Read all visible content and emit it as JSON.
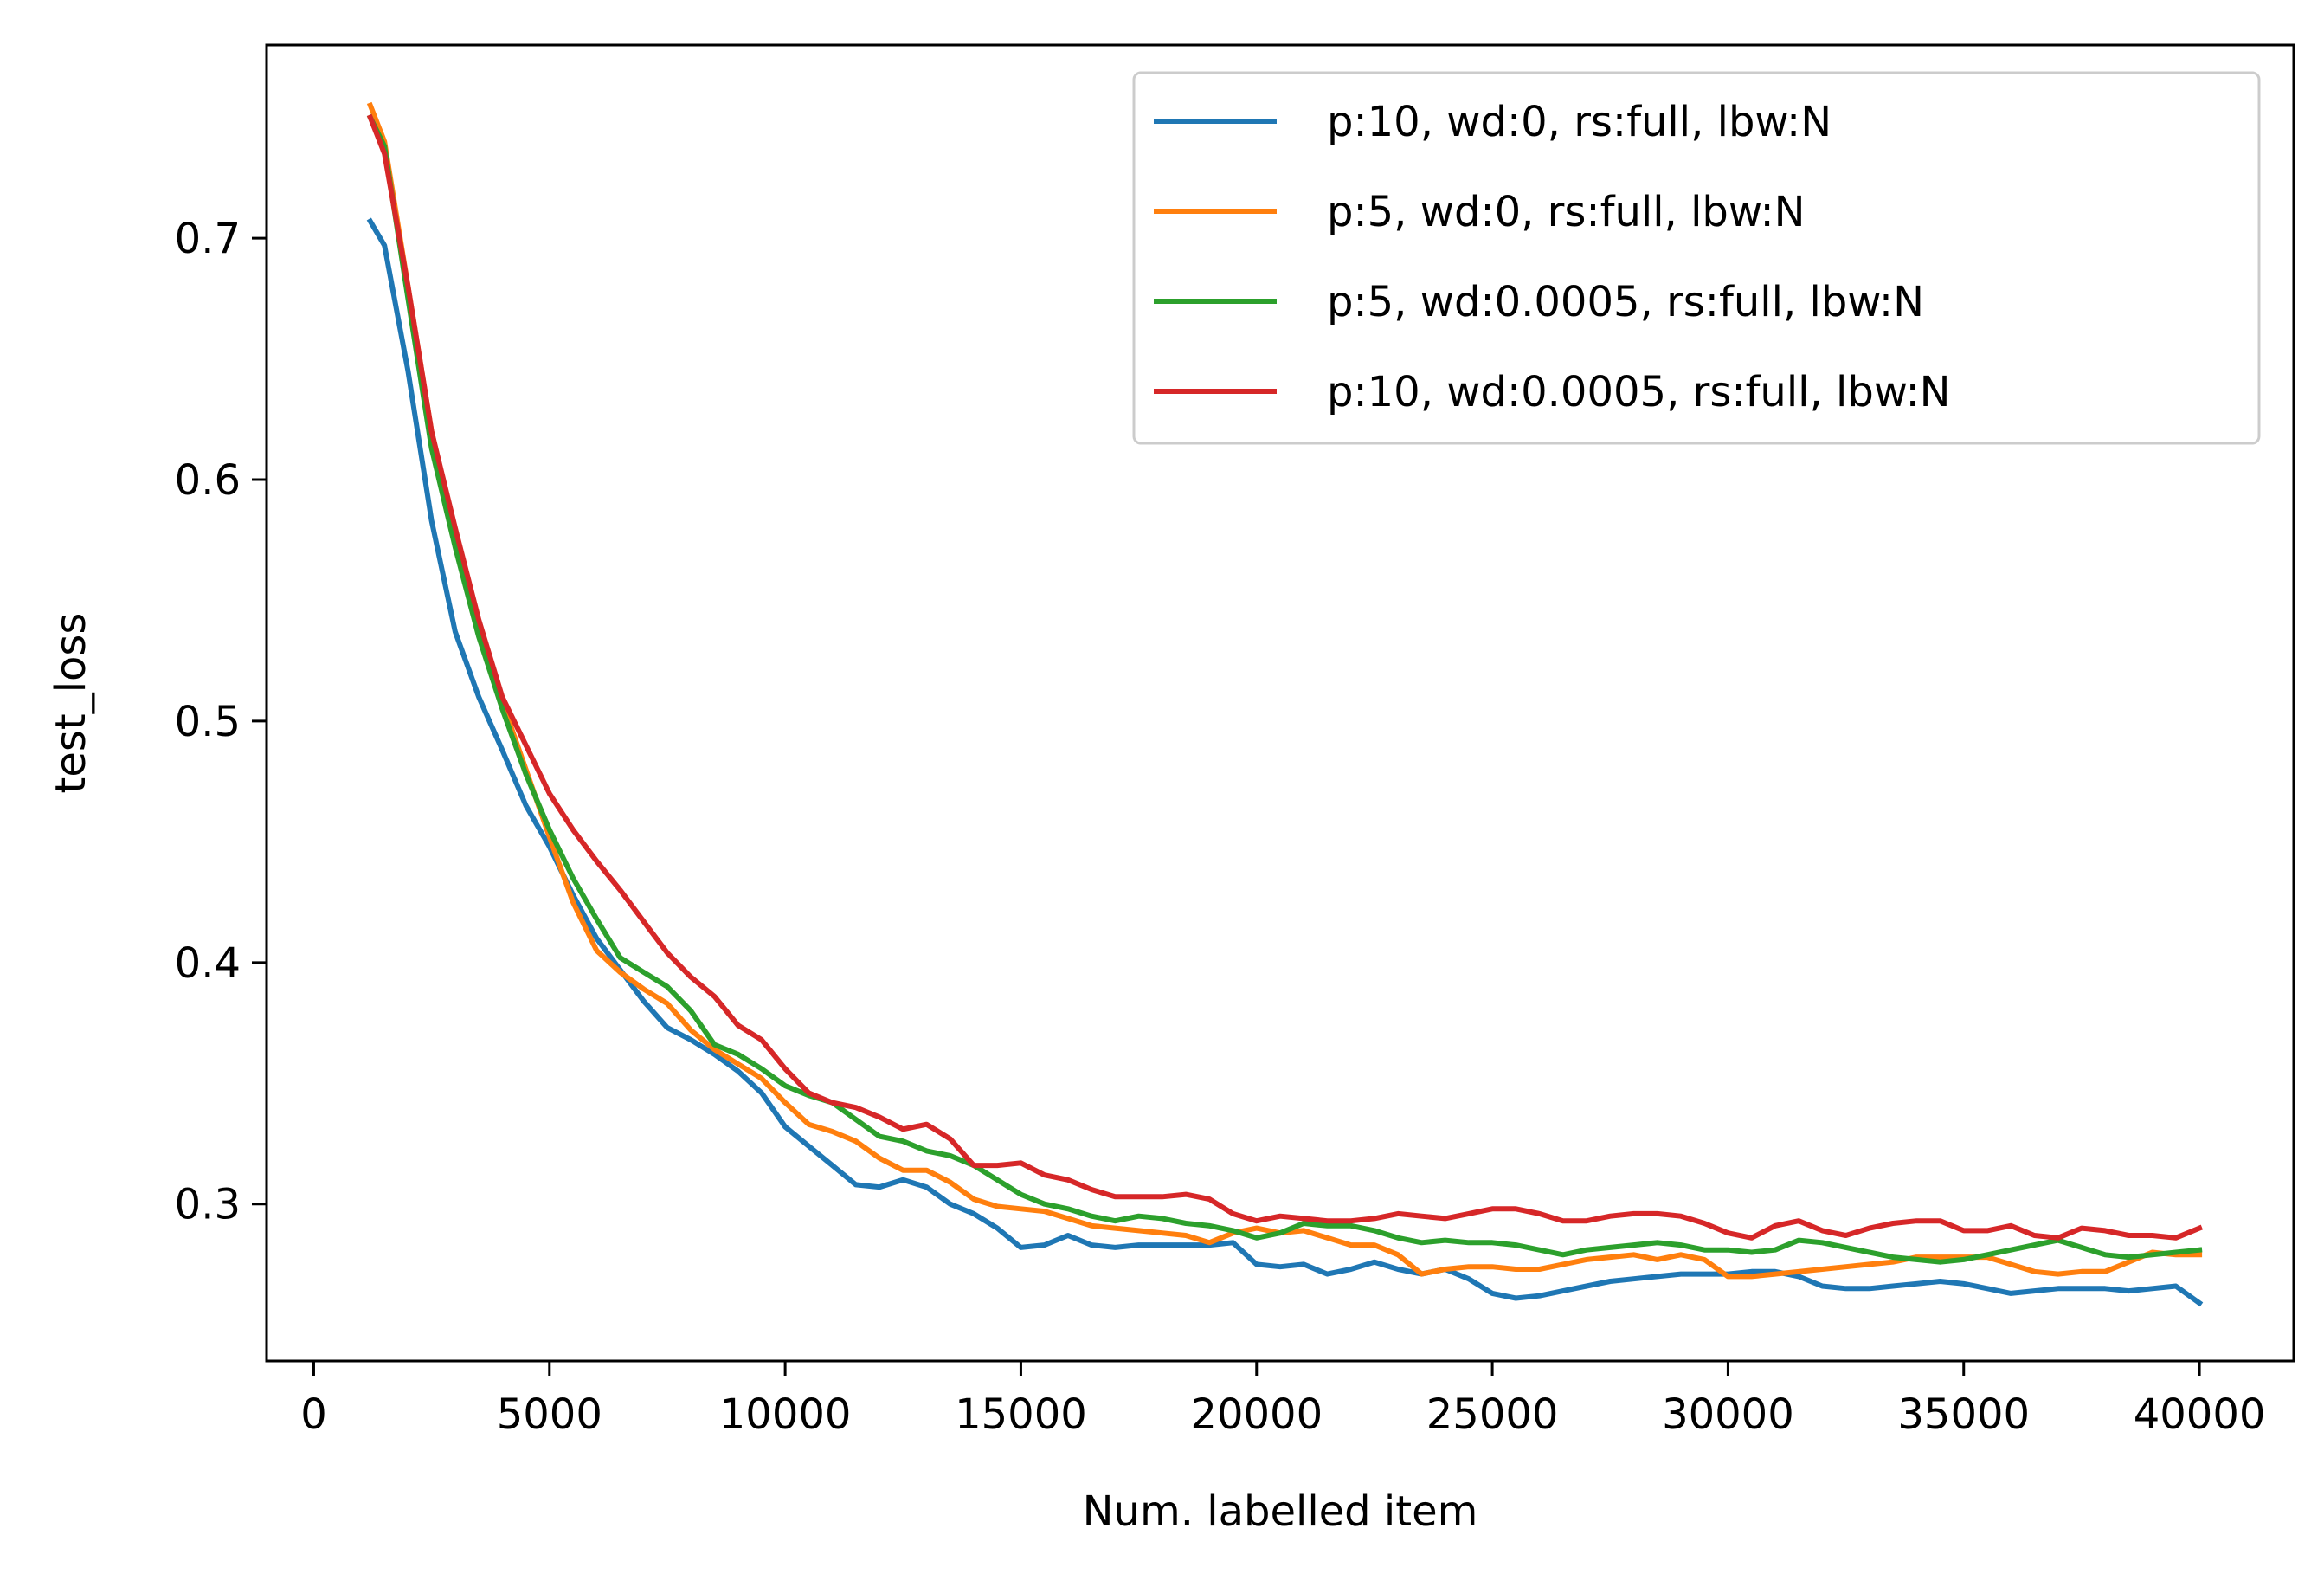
{
  "chart_data": {
    "type": "line",
    "title": "",
    "xlabel": "Num. labelled item",
    "ylabel": "test_loss",
    "xlim": [
      -1000,
      42000
    ],
    "ylim": [
      0.235,
      0.78
    ],
    "xticks": [
      0,
      5000,
      10000,
      15000,
      20000,
      25000,
      30000,
      35000,
      40000
    ],
    "xtick_labels": [
      "0",
      "5000",
      "10000",
      "15000",
      "20000",
      "25000",
      "30000",
      "35000",
      "40000"
    ],
    "yticks": [
      0.3,
      0.4,
      0.5,
      0.6,
      0.7
    ],
    "ytick_labels": [
      "0.3",
      "0.4",
      "0.5",
      "0.6",
      "0.7"
    ],
    "grid": false,
    "legend_position": "top-right",
    "series": [
      {
        "name": "p:10, wd:0, rs:full, lbw:N",
        "color": "#1f77b4",
        "x": [
          1200,
          1500,
          2000,
          2500,
          3000,
          3500,
          4000,
          4500,
          5000,
          5500,
          6000,
          6500,
          7000,
          7500,
          8000,
          8500,
          9000,
          9500,
          10000,
          10500,
          11000,
          11500,
          12000,
          12500,
          13000,
          13500,
          14000,
          14500,
          15000,
          15500,
          16000,
          16500,
          17000,
          17500,
          18000,
          18500,
          19000,
          19500,
          20000,
          20500,
          21000,
          21500,
          22000,
          22500,
          23000,
          23500,
          24000,
          24500,
          25000,
          25500,
          26000,
          26500,
          27000,
          27500,
          28000,
          28500,
          29000,
          29500,
          30000,
          30500,
          31000,
          31500,
          32000,
          32500,
          33000,
          33500,
          34000,
          34500,
          35000,
          35500,
          36000,
          36500,
          37000,
          37500,
          38000,
          38500,
          39000,
          39500,
          40000
        ],
        "values": [
          0.707,
          0.697,
          0.645,
          0.583,
          0.537,
          0.51,
          0.488,
          0.465,
          0.448,
          0.428,
          0.41,
          0.397,
          0.384,
          0.373,
          0.368,
          0.362,
          0.355,
          0.346,
          0.332,
          0.324,
          0.316,
          0.308,
          0.307,
          0.31,
          0.307,
          0.3,
          0.296,
          0.29,
          0.282,
          0.283,
          0.287,
          0.283,
          0.282,
          0.283,
          0.283,
          0.283,
          0.283,
          0.284,
          0.275,
          0.274,
          0.275,
          0.271,
          0.273,
          0.276,
          0.273,
          0.271,
          0.273,
          0.269,
          0.263,
          0.261,
          0.262,
          0.264,
          0.266,
          0.268,
          0.269,
          0.27,
          0.271,
          0.271,
          0.271,
          0.272,
          0.272,
          0.27,
          0.266,
          0.265,
          0.265,
          0.266,
          0.267,
          0.268,
          0.267,
          0.265,
          0.263,
          0.264,
          0.265,
          0.265,
          0.265,
          0.264,
          0.265,
          0.266,
          0.259
        ]
      },
      {
        "name": "p:5, wd:0, rs:full, lbw:N",
        "color": "#ff7f0e",
        "x": [
          1200,
          1500,
          2000,
          2500,
          3000,
          3500,
          4000,
          4500,
          5000,
          5500,
          6000,
          6500,
          7000,
          7500,
          8000,
          8500,
          9000,
          9500,
          10000,
          10500,
          11000,
          11500,
          12000,
          12500,
          13000,
          13500,
          14000,
          14500,
          15000,
          15500,
          16000,
          16500,
          17000,
          17500,
          18000,
          18500,
          19000,
          19500,
          20000,
          20500,
          21000,
          21500,
          22000,
          22500,
          23000,
          23500,
          24000,
          24500,
          25000,
          25500,
          26000,
          26500,
          27000,
          27500,
          28000,
          28500,
          29000,
          29500,
          30000,
          30500,
          31000,
          31500,
          32000,
          32500,
          33000,
          33500,
          34000,
          34500,
          35000,
          35500,
          36000,
          36500,
          37000,
          37500,
          38000,
          38500,
          39000,
          39500,
          40000
        ],
        "values": [
          0.755,
          0.74,
          0.68,
          0.62,
          0.578,
          0.54,
          0.508,
          0.48,
          0.452,
          0.425,
          0.405,
          0.396,
          0.389,
          0.383,
          0.372,
          0.364,
          0.358,
          0.352,
          0.342,
          0.333,
          0.33,
          0.326,
          0.319,
          0.314,
          0.314,
          0.309,
          0.302,
          0.299,
          0.298,
          0.297,
          0.294,
          0.291,
          0.29,
          0.289,
          0.288,
          0.287,
          0.284,
          0.288,
          0.29,
          0.288,
          0.289,
          0.286,
          0.283,
          0.283,
          0.279,
          0.271,
          0.273,
          0.274,
          0.274,
          0.273,
          0.273,
          0.275,
          0.277,
          0.278,
          0.279,
          0.277,
          0.279,
          0.277,
          0.27,
          0.27,
          0.271,
          0.272,
          0.273,
          0.274,
          0.275,
          0.276,
          0.278,
          0.278,
          0.278,
          0.278,
          0.275,
          0.272,
          0.271,
          0.272,
          0.272,
          0.276,
          0.28,
          0.279,
          0.279
        ]
      },
      {
        "name": "p:5, wd:0.0005, rs:full, lbw:N",
        "color": "#2ca02c",
        "x": [
          1200,
          1500,
          2000,
          2500,
          3000,
          3500,
          4000,
          4500,
          5000,
          5500,
          6000,
          6500,
          7000,
          7500,
          8000,
          8500,
          9000,
          9500,
          10000,
          10500,
          11000,
          11500,
          12000,
          12500,
          13000,
          13500,
          14000,
          14500,
          15000,
          15500,
          16000,
          16500,
          17000,
          17500,
          18000,
          18500,
          19000,
          19500,
          20000,
          20500,
          21000,
          21500,
          22000,
          22500,
          23000,
          23500,
          24000,
          24500,
          25000,
          25500,
          26000,
          26500,
          27000,
          27500,
          28000,
          28500,
          29000,
          29500,
          30000,
          30500,
          31000,
          31500,
          32000,
          32500,
          33000,
          33500,
          34000,
          34500,
          35000,
          35500,
          36000,
          36500,
          37000,
          37500,
          38000,
          38500,
          39000,
          39500,
          40000
        ],
        "values": [
          0.75,
          0.738,
          0.675,
          0.613,
          0.572,
          0.535,
          0.505,
          0.478,
          0.455,
          0.435,
          0.418,
          0.402,
          0.396,
          0.39,
          0.38,
          0.366,
          0.362,
          0.356,
          0.349,
          0.345,
          0.342,
          0.335,
          0.328,
          0.326,
          0.322,
          0.32,
          0.316,
          0.31,
          0.304,
          0.3,
          0.298,
          0.295,
          0.293,
          0.295,
          0.294,
          0.292,
          0.291,
          0.289,
          0.286,
          0.288,
          0.292,
          0.291,
          0.291,
          0.289,
          0.286,
          0.284,
          0.285,
          0.284,
          0.284,
          0.283,
          0.281,
          0.279,
          0.281,
          0.282,
          0.283,
          0.284,
          0.283,
          0.281,
          0.281,
          0.28,
          0.281,
          0.285,
          0.284,
          0.282,
          0.28,
          0.278,
          0.277,
          0.276,
          0.277,
          0.279,
          0.281,
          0.283,
          0.285,
          0.282,
          0.279,
          0.278,
          0.279,
          0.28,
          0.281
        ]
      },
      {
        "name": "p:10, wd:0.0005, rs:full, lbw:N",
        "color": "#d62728",
        "x": [
          1200,
          1500,
          2000,
          2500,
          3000,
          3500,
          4000,
          4500,
          5000,
          5500,
          6000,
          6500,
          7000,
          7500,
          8000,
          8500,
          9000,
          9500,
          10000,
          10500,
          11000,
          11500,
          12000,
          12500,
          13000,
          13500,
          14000,
          14500,
          15000,
          15500,
          16000,
          16500,
          17000,
          17500,
          18000,
          18500,
          19000,
          19500,
          20000,
          20500,
          21000,
          21500,
          22000,
          22500,
          23000,
          23500,
          24000,
          24500,
          25000,
          25500,
          26000,
          26500,
          27000,
          27500,
          28000,
          28500,
          29000,
          29500,
          30000,
          30500,
          31000,
          31500,
          32000,
          32500,
          33000,
          33500,
          34000,
          34500,
          35000,
          35500,
          36000,
          36500,
          37000,
          37500,
          38000,
          38500,
          39000,
          39500,
          40000
        ],
        "values": [
          0.75,
          0.735,
          0.68,
          0.62,
          0.58,
          0.542,
          0.51,
          0.49,
          0.47,
          0.455,
          0.442,
          0.43,
          0.417,
          0.404,
          0.394,
          0.386,
          0.374,
          0.368,
          0.356,
          0.346,
          0.342,
          0.34,
          0.336,
          0.331,
          0.333,
          0.327,
          0.316,
          0.316,
          0.317,
          0.312,
          0.31,
          0.306,
          0.303,
          0.303,
          0.303,
          0.304,
          0.302,
          0.296,
          0.293,
          0.295,
          0.294,
          0.293,
          0.293,
          0.294,
          0.296,
          0.295,
          0.294,
          0.296,
          0.298,
          0.298,
          0.296,
          0.293,
          0.293,
          0.295,
          0.296,
          0.296,
          0.295,
          0.292,
          0.288,
          0.286,
          0.291,
          0.293,
          0.289,
          0.287,
          0.29,
          0.292,
          0.293,
          0.293,
          0.289,
          0.289,
          0.291,
          0.287,
          0.286,
          0.29,
          0.289,
          0.287,
          0.287,
          0.286,
          0.29
        ]
      }
    ]
  }
}
